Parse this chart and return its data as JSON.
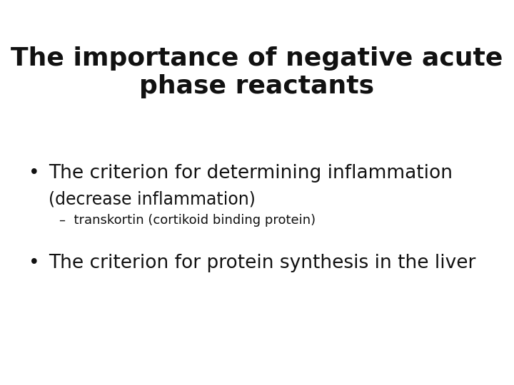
{
  "title_line1": "The importance of negative acute",
  "title_line2": "phase reactants",
  "title_fontsize": 26,
  "title_color": "#111111",
  "background_color": "#ffffff",
  "bullet1_main": "The criterion for determining inflammation",
  "bullet1_sub": "(decrease inflammation)",
  "bullet1_subsub": "–  transkortin (cortikoid binding protein)",
  "bullet2_main": "The criterion for protein synthesis in the liver",
  "bullet_fontsize": 19,
  "sub_fontsize": 17,
  "subsub_fontsize": 13,
  "bullet_color": "#111111",
  "bullet_symbol": "•"
}
